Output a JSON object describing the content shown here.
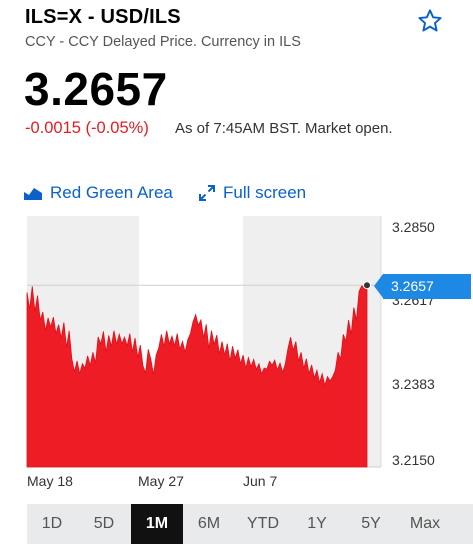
{
  "header": {
    "ticker": "ILS=X - USD/ILS",
    "subtitle": "CCY - CCY Delayed Price. Currency in ILS",
    "price": "3.2657",
    "change": "-0.0015 (-0.05%)",
    "as_of": "As of 7:45AM BST. Market open."
  },
  "controls": {
    "area_style_label": "Red Green Area",
    "fullscreen_label": "Full screen"
  },
  "chart_data": {
    "type": "area",
    "x_tick_labels": [
      "May 18",
      "May 27",
      "Jun 7"
    ],
    "y_tick_labels": [
      "3.2850",
      "3.2617",
      "3.2383",
      "3.2150"
    ],
    "ylim": [
      3.215,
      3.285
    ],
    "current_value_label": "3.2657",
    "current_value": 3.2657,
    "fill_color": "#ee1c25",
    "series": [
      {
        "values": [
          3.2637,
          3.259,
          3.2654,
          3.2584,
          3.2628,
          3.256,
          3.2582,
          3.253,
          3.2566,
          3.254,
          3.2568,
          3.2522,
          3.2547,
          3.251,
          3.2553,
          3.2483,
          3.253,
          3.2452,
          3.2415,
          3.2446,
          3.241,
          3.2438,
          3.2425,
          3.246,
          3.2433,
          3.247,
          3.244,
          3.2513,
          3.2493,
          3.2528,
          3.247,
          3.2517,
          3.2486,
          3.253,
          3.2492,
          3.252,
          3.2494,
          3.2512,
          3.2488,
          3.2522,
          3.247,
          3.251,
          3.2455,
          3.249,
          3.2432,
          3.2412,
          3.2478,
          3.245,
          3.2407,
          3.2462,
          3.2482,
          3.252,
          3.2487,
          3.253,
          3.2493,
          3.2515,
          3.2488,
          3.2522,
          3.2478,
          3.25,
          3.247,
          3.2505,
          3.2522,
          3.2555,
          3.2575,
          3.2545,
          3.256,
          3.251,
          3.2548,
          3.248,
          3.253,
          3.2492,
          3.2518,
          3.2465,
          3.25,
          3.2462,
          3.2494,
          3.2445,
          3.2487,
          3.2453,
          3.2477,
          3.2438,
          3.2462,
          3.2425,
          3.2455,
          3.243,
          3.245,
          3.2422,
          3.2438,
          3.241,
          3.2426,
          3.2423,
          3.2445,
          3.2434,
          3.2448,
          3.242,
          3.244,
          3.2414,
          3.2437,
          3.248,
          3.2512,
          3.2475,
          3.25,
          3.2445,
          3.247,
          3.2425,
          3.2452,
          3.241,
          3.2435,
          3.2398,
          3.242,
          3.2385,
          3.241,
          3.2378,
          3.2402,
          3.239,
          3.2402,
          3.242,
          3.247,
          3.245,
          3.252,
          3.25,
          3.256,
          3.252,
          3.2595,
          3.256,
          3.264,
          3.2655,
          3.2655,
          3.2657
        ]
      }
    ]
  },
  "ranges": {
    "items": [
      "1D",
      "5D",
      "1M",
      "6M",
      "YTD",
      "1Y",
      "5Y",
      "Max"
    ],
    "active": "1M"
  },
  "colors": {
    "accent": "#0a61c9",
    "negative": "#e51c23",
    "badge": "#1e88e5",
    "area": "#ee1c25"
  }
}
